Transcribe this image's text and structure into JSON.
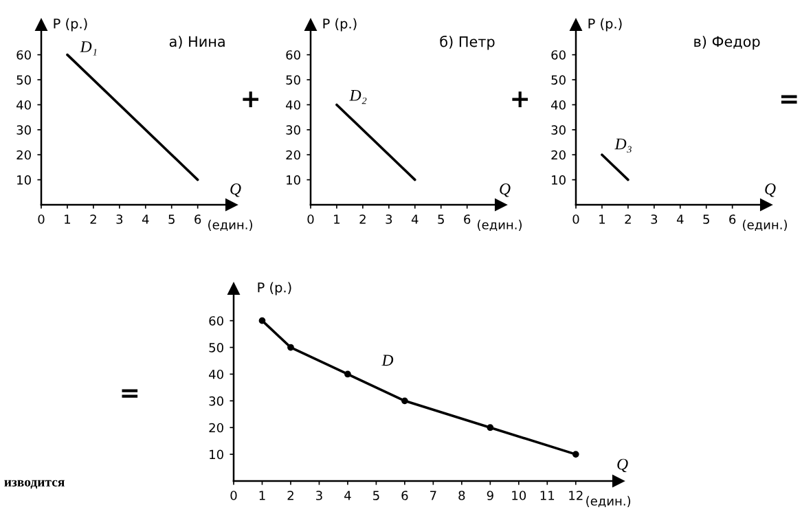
{
  "chart_data": [
    {
      "type": "line",
      "title": "а) Нина",
      "ylabel": "P (р.)",
      "xlabel": "(един.)",
      "x": [
        1,
        6
      ],
      "series": [
        {
          "color": "#000000",
          "values": [
            60,
            10
          ]
        }
      ],
      "xlim": [
        0,
        7.3
      ],
      "ylim": [
        0,
        72
      ],
      "xticks": [
        0,
        1,
        2,
        3,
        4,
        5,
        6
      ],
      "yticks": [
        10,
        20,
        30,
        40,
        50,
        60
      ],
      "marker": "none",
      "grid": false,
      "annotations": [
        "D₁",
        "Q",
        "+"
      ]
    },
    {
      "type": "line",
      "title": "б) Петр",
      "ylabel": "P (р.)",
      "xlabel": "(един.)",
      "x": [
        1,
        4
      ],
      "series": [
        {
          "color": "#000000",
          "values": [
            40,
            10
          ]
        }
      ],
      "xlim": [
        0,
        7.3
      ],
      "ylim": [
        0,
        72
      ],
      "xticks": [
        0,
        1,
        2,
        3,
        4,
        5,
        6
      ],
      "yticks": [
        10,
        20,
        30,
        40,
        50,
        60
      ],
      "marker": "none",
      "grid": false,
      "annotations": [
        "D₂",
        "Q",
        "+"
      ]
    },
    {
      "type": "line",
      "title": "в) Федор",
      "ylabel": "P (р.)",
      "xlabel": "(един.)",
      "x": [
        1,
        2
      ],
      "series": [
        {
          "color": "#000000",
          "values": [
            20,
            10
          ]
        }
      ],
      "xlim": [
        0,
        7.3
      ],
      "ylim": [
        0,
        72
      ],
      "xticks": [
        0,
        1,
        2,
        3,
        4,
        5,
        6
      ],
      "yticks": [
        10,
        20,
        30,
        40,
        50,
        60
      ],
      "marker": "none",
      "grid": false,
      "annotations": [
        "D₃",
        "Q",
        "="
      ]
    },
    {
      "type": "line",
      "ylabel": "P (р.)",
      "xlabel": "(един.)",
      "x": [
        1,
        2,
        4,
        6,
        9,
        12
      ],
      "series": [
        {
          "color": "#000000",
          "values": [
            60,
            50,
            40,
            30,
            20,
            10
          ]
        }
      ],
      "xlim": [
        0,
        13.5
      ],
      "ylim": [
        0,
        72
      ],
      "xticks": [
        0,
        1,
        2,
        3,
        4,
        5,
        6,
        7,
        8,
        9,
        10,
        11,
        12
      ],
      "yticks": [
        10,
        20,
        30,
        40,
        50,
        60
      ],
      "marker": "circle",
      "grid": false,
      "annotations": [
        "D",
        "Q",
        "=",
        "изводится"
      ]
    }
  ]
}
